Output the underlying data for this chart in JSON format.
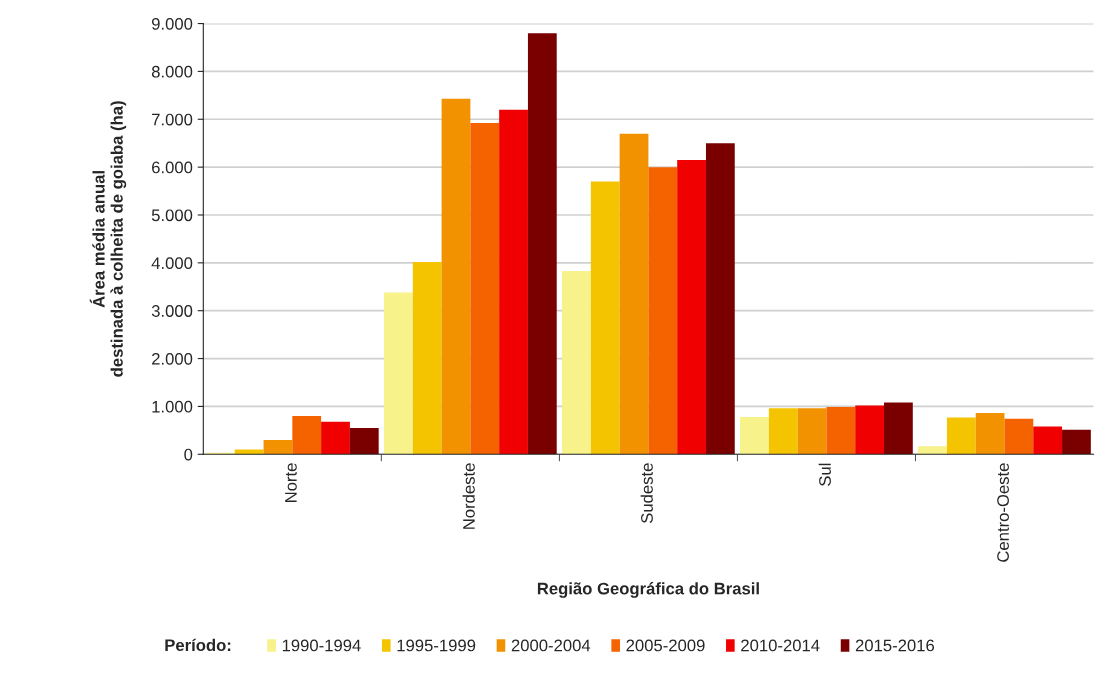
{
  "chart_data": {
    "type": "bar",
    "xlabel": "Região Geográfica do Brasil",
    "ylabel": "Área média anual\ndestinada à colheita de goiaba (ha)",
    "legend_title": "Período:",
    "categories": [
      "Norte",
      "Nordeste",
      "Sudeste",
      "Sul",
      "Centro-Oeste"
    ],
    "series": [
      {
        "name": "1990-1994",
        "color": "#f7f28a",
        "values": [
          30,
          3380,
          3830,
          780,
          170
        ]
      },
      {
        "name": "1995-1999",
        "color": "#f5c400",
        "values": [
          100,
          4020,
          5700,
          960,
          770
        ]
      },
      {
        "name": "2000-2004",
        "color": "#f39200",
        "values": [
          300,
          7430,
          6700,
          960,
          860
        ]
      },
      {
        "name": "2005-2009",
        "color": "#f56200",
        "values": [
          800,
          6920,
          6000,
          990,
          740
        ]
      },
      {
        "name": "2010-2014",
        "color": "#f00000",
        "values": [
          680,
          7200,
          6150,
          1020,
          580
        ]
      },
      {
        "name": "2015-2016",
        "color": "#7a0000",
        "values": [
          550,
          8800,
          6500,
          1080,
          510
        ]
      }
    ],
    "ylim": [
      0,
      9000
    ],
    "yticks": [
      0,
      {
        "value": 1000,
        "label": "1.000"
      },
      {
        "value": 2000,
        "label": "2.000"
      },
      {
        "value": 3000,
        "label": "3.000"
      },
      {
        "value": 4000,
        "label": "4.000"
      },
      {
        "value": 5000,
        "label": "5.000"
      },
      {
        "value": 6000,
        "label": "6.000"
      },
      {
        "value": 7000,
        "label": "7.000"
      },
      {
        "value": 8000,
        "label": "8.000"
      },
      {
        "value": 9000,
        "label": "9.000"
      }
    ],
    "grid": "y",
    "legend": "bottom"
  }
}
